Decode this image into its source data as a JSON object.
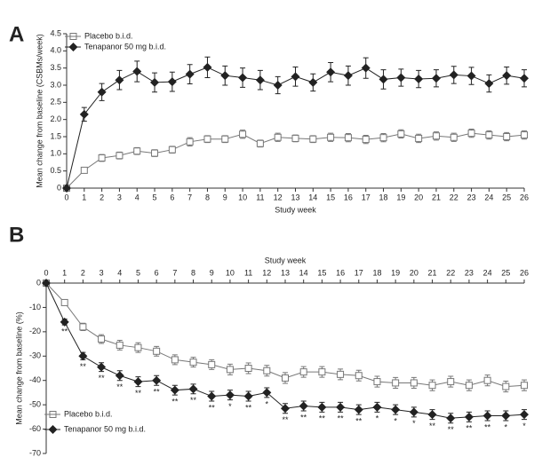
{
  "chart_data": [
    {
      "type": "line",
      "panel_label": "A",
      "xlabel": "Study week",
      "ylabel": "Mean change from baseline (CSBMs/week)",
      "x": [
        0,
        1,
        2,
        3,
        4,
        5,
        6,
        7,
        8,
        9,
        10,
        11,
        12,
        13,
        14,
        15,
        16,
        17,
        18,
        19,
        20,
        21,
        22,
        23,
        24,
        25,
        26
      ],
      "xlim": [
        0,
        26
      ],
      "xticks": [
        0,
        1,
        2,
        3,
        4,
        5,
        6,
        7,
        8,
        9,
        10,
        11,
        12,
        13,
        14,
        15,
        16,
        17,
        18,
        19,
        20,
        21,
        22,
        23,
        24,
        25,
        26
      ],
      "ylim": [
        0,
        4.5
      ],
      "yticks": [
        0,
        0.5,
        {
          "value": 1,
          "label": "1.0"
        },
        1.5,
        {
          "value": 2,
          "label": "2.0"
        },
        2.5,
        {
          "value": 3,
          "label": "3.0"
        },
        3.5,
        {
          "value": 4,
          "label": "4.0"
        },
        4.5
      ],
      "legend": "upper left",
      "xaxis_position": "bottom",
      "series": [
        {
          "name": "Placebo b.i.d.",
          "color": "#777777",
          "marker": "square",
          "values": [
            0,
            0.52,
            0.88,
            0.95,
            1.08,
            1.02,
            1.12,
            1.35,
            1.43,
            1.43,
            1.57,
            1.3,
            1.48,
            1.45,
            1.43,
            1.48,
            1.47,
            1.42,
            1.47,
            1.58,
            1.45,
            1.52,
            1.48,
            1.6,
            1.55,
            1.5,
            1.55
          ],
          "errors": [
            0,
            0.06,
            0.1,
            0.1,
            0.1,
            0.1,
            0.1,
            0.12,
            0.1,
            0.1,
            0.12,
            0.1,
            0.12,
            0.1,
            0.1,
            0.12,
            0.12,
            0.12,
            0.12,
            0.12,
            0.12,
            0.12,
            0.12,
            0.12,
            0.12,
            0.12,
            0.12
          ]
        },
        {
          "name": "Tenapanor 50 mg b.i.d.",
          "color": "#222222",
          "marker": "diamond",
          "values": [
            0,
            2.15,
            2.8,
            3.15,
            3.4,
            3.08,
            3.1,
            3.32,
            3.52,
            3.28,
            3.22,
            3.15,
            3,
            3.25,
            3.08,
            3.38,
            3.28,
            3.5,
            3.17,
            3.22,
            3.18,
            3.2,
            3.3,
            3.27,
            3.05,
            3.28,
            3.2
          ],
          "errors": [
            0,
            0.2,
            0.25,
            0.28,
            0.3,
            0.28,
            0.28,
            0.28,
            0.3,
            0.28,
            0.28,
            0.28,
            0.25,
            0.28,
            0.25,
            0.28,
            0.28,
            0.3,
            0.28,
            0.25,
            0.25,
            0.25,
            0.25,
            0.25,
            0.25,
            0.25,
            0.25
          ]
        }
      ]
    },
    {
      "type": "line",
      "panel_label": "B",
      "xlabel": "Study week",
      "ylabel": "Mean change from baseline (%)",
      "x": [
        0,
        1,
        2,
        3,
        4,
        5,
        6,
        7,
        8,
        9,
        10,
        11,
        12,
        13,
        14,
        15,
        16,
        17,
        18,
        19,
        20,
        21,
        22,
        23,
        24,
        25,
        26
      ],
      "xlim": [
        0,
        26
      ],
      "xticks": [
        0,
        1,
        2,
        3,
        4,
        5,
        6,
        7,
        8,
        9,
        10,
        11,
        12,
        13,
        14,
        15,
        16,
        17,
        18,
        19,
        20,
        21,
        22,
        23,
        24,
        25,
        26
      ],
      "ylim": [
        -70,
        0
      ],
      "yticks": [
        0,
        -10,
        -20,
        -30,
        -40,
        -50,
        -60,
        -70
      ],
      "legend": "lower left",
      "xaxis_position": "top",
      "series": [
        {
          "name": "Placebo b.i.d.",
          "color": "#777777",
          "marker": "square",
          "values": [
            0,
            -8,
            -18,
            -23,
            -25.5,
            -26.5,
            -28,
            -31.5,
            -32.5,
            -33.5,
            -35.5,
            -35,
            -36,
            -39,
            -36.5,
            -36.5,
            -37.5,
            -38,
            -40.5,
            -41,
            -41,
            -42,
            -40.5,
            -42,
            -40,
            -42.5,
            -42
          ],
          "errors": [
            0,
            1,
            1.5,
            1.8,
            2,
            2,
            2,
            2,
            2,
            2,
            2.2,
            2.2,
            2.2,
            2.2,
            2.2,
            2.2,
            2.2,
            2.2,
            2.2,
            2.2,
            2.2,
            2.2,
            2.2,
            2.2,
            2.2,
            2.2,
            2.2
          ]
        },
        {
          "name": "Tenapanor 50 mg b.i.d.",
          "color": "#222222",
          "marker": "diamond",
          "values": [
            0,
            -16,
            -30,
            -34.5,
            -38,
            -40.5,
            -40,
            -44,
            -43.5,
            -46.5,
            -46,
            -46.5,
            -45,
            -51.5,
            -50.5,
            -51,
            -51,
            -52,
            -51,
            -52,
            -53,
            -54,
            -55.5,
            -55,
            -54.5,
            -54.5,
            -54
          ],
          "errors": [
            0,
            1.2,
            1.5,
            1.8,
            2,
            2,
            2,
            2,
            2,
            2,
            2,
            2,
            2,
            2,
            2,
            2,
            2,
            2,
            2,
            2,
            2,
            2,
            2,
            2,
            2,
            2,
            2
          ],
          "significance": [
            null,
            "**",
            "**",
            "**",
            "**",
            "**",
            "**",
            "**",
            "**",
            "**",
            "*",
            "**",
            "*",
            "**",
            "**",
            "**",
            "**",
            "**",
            "*",
            "*",
            "*",
            "**",
            "**",
            "**",
            "**",
            "*",
            "*"
          ]
        }
      ]
    }
  ]
}
